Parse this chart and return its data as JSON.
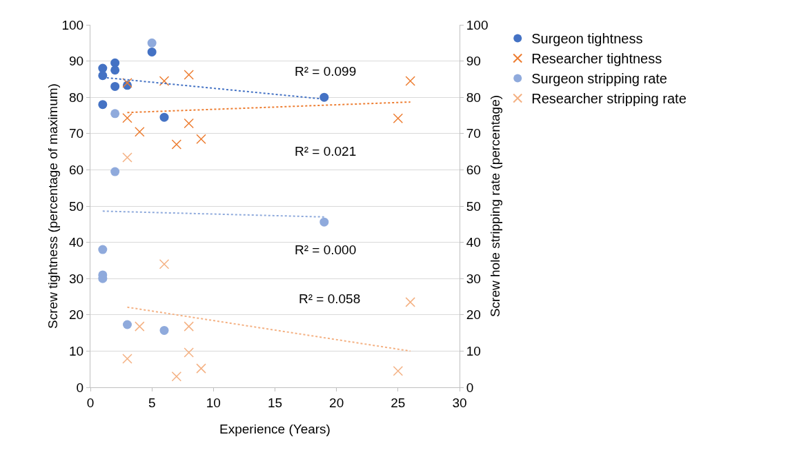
{
  "chart_data": {
    "type": "scatter",
    "xlabel": "Experience (Years)",
    "ylabel": "Screw tightness (percentage of maximum)",
    "y2label": "Screw hole stripping rate (percentage)",
    "xlim": [
      0,
      30
    ],
    "xticks": [
      0,
      5,
      10,
      15,
      20,
      25,
      30
    ],
    "ylim": [
      0,
      100
    ],
    "yticks": [
      0,
      10,
      20,
      30,
      40,
      50,
      60,
      70,
      80,
      90,
      100
    ],
    "y2lim": [
      0,
      100
    ],
    "y2ticks": [
      0,
      10,
      20,
      30,
      40,
      50,
      60,
      70,
      80,
      90,
      100
    ],
    "grid": "y",
    "legend": "right",
    "series": [
      {
        "name": "Surgeon tightness",
        "color": "#4472c4",
        "marker": "circle",
        "x": [
          1,
          1,
          1,
          2,
          2,
          2,
          3,
          5,
          6,
          19
        ],
        "values": [
          88,
          86,
          78,
          89.5,
          87.5,
          83,
          83.3,
          92.5,
          74.5,
          80
        ]
      },
      {
        "name": "Researcher tightness",
        "color": "#ed7d31",
        "marker": "cross",
        "x": [
          3,
          3,
          4,
          6,
          7,
          8,
          8,
          9,
          25,
          26
        ],
        "values": [
          84,
          74.3,
          70.5,
          84.5,
          67,
          86.2,
          72.8,
          68.5,
          74.2,
          84.5
        ]
      },
      {
        "name": "Surgeon stripping rate",
        "color": "#8faadc",
        "marker": "circle",
        "axis": "y2",
        "x": [
          5,
          2,
          2,
          1,
          1,
          1,
          3,
          6,
          19
        ],
        "values": [
          95,
          75.5,
          59.5,
          38,
          31,
          30,
          17.3,
          15.7,
          45.6
        ]
      },
      {
        "name": "Researcher stripping rate",
        "color": "#f4b183",
        "marker": "cross",
        "axis": "y2",
        "x": [
          3,
          6,
          4,
          8,
          3,
          8,
          9,
          7,
          25,
          26
        ],
        "values": [
          63.4,
          34,
          16.8,
          16.8,
          7.9,
          9.6,
          5.2,
          3,
          4.5,
          23.5
        ]
      },
      {
        "type": "line",
        "color": "#4472c4",
        "line_style": "dotted",
        "marker": "none",
        "x": [
          1,
          19
        ],
        "values": [
          85.5,
          79.5
        ]
      },
      {
        "type": "line",
        "color": "#ed7d31",
        "line_style": "dotted",
        "marker": "none",
        "x": [
          3,
          26
        ],
        "values": [
          75.8,
          78.7
        ]
      },
      {
        "type": "line",
        "color": "#8faadc",
        "line_style": "dotted",
        "marker": "none",
        "axis": "y2",
        "x": [
          1,
          19
        ],
        "values": [
          48.6,
          47
        ]
      },
      {
        "type": "line",
        "color": "#f4b183",
        "line_style": "dotted",
        "marker": "none",
        "axis": "y2",
        "x": [
          3,
          26
        ],
        "values": [
          22.1,
          10
        ]
      }
    ],
    "annotations": [
      "R² = 0.099",
      "R² = 0.021",
      "R² = 0.000",
      "R² = 0.058"
    ]
  }
}
